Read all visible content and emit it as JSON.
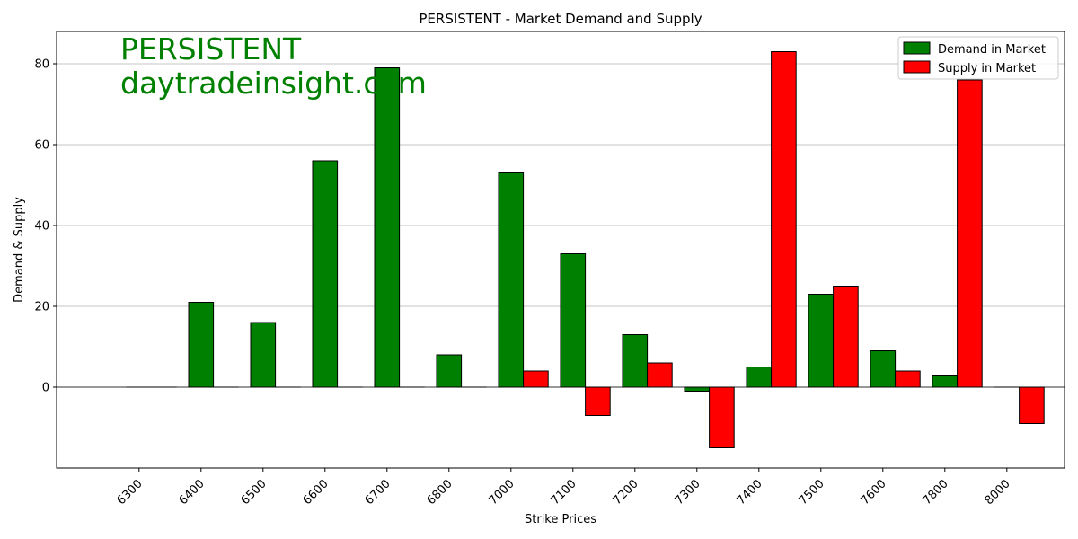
{
  "chart_data": {
    "type": "bar",
    "title": "PERSISTENT - Market Demand and Supply",
    "xlabel": "Strike Prices",
    "ylabel": "Demand & Supply",
    "categories": [
      "6300",
      "6400",
      "6500",
      "6600",
      "6700",
      "6800",
      "7000",
      "7100",
      "7200",
      "7300",
      "7400",
      "7500",
      "7600",
      "7800",
      "8000"
    ],
    "series": [
      {
        "name": "Demand in Market",
        "color": "#008000",
        "values": [
          0,
          21,
          16,
          56,
          79,
          8,
          53,
          33,
          13,
          -1,
          5,
          23,
          9,
          3,
          0
        ]
      },
      {
        "name": "Supply in Market",
        "color": "#ff0000",
        "values": [
          0,
          0,
          0,
          0,
          0,
          0,
          4,
          -7,
          6,
          -15,
          83,
          25,
          4,
          76,
          -9
        ]
      }
    ],
    "ylim": [
      -20,
      88
    ],
    "yticks": [
      0,
      20,
      40,
      60,
      80
    ],
    "grid": "y",
    "legend_position": "top-right"
  },
  "watermark": {
    "line1": "PERSISTENT",
    "line2": "daytradeinsight.com",
    "color": "#008000"
  }
}
